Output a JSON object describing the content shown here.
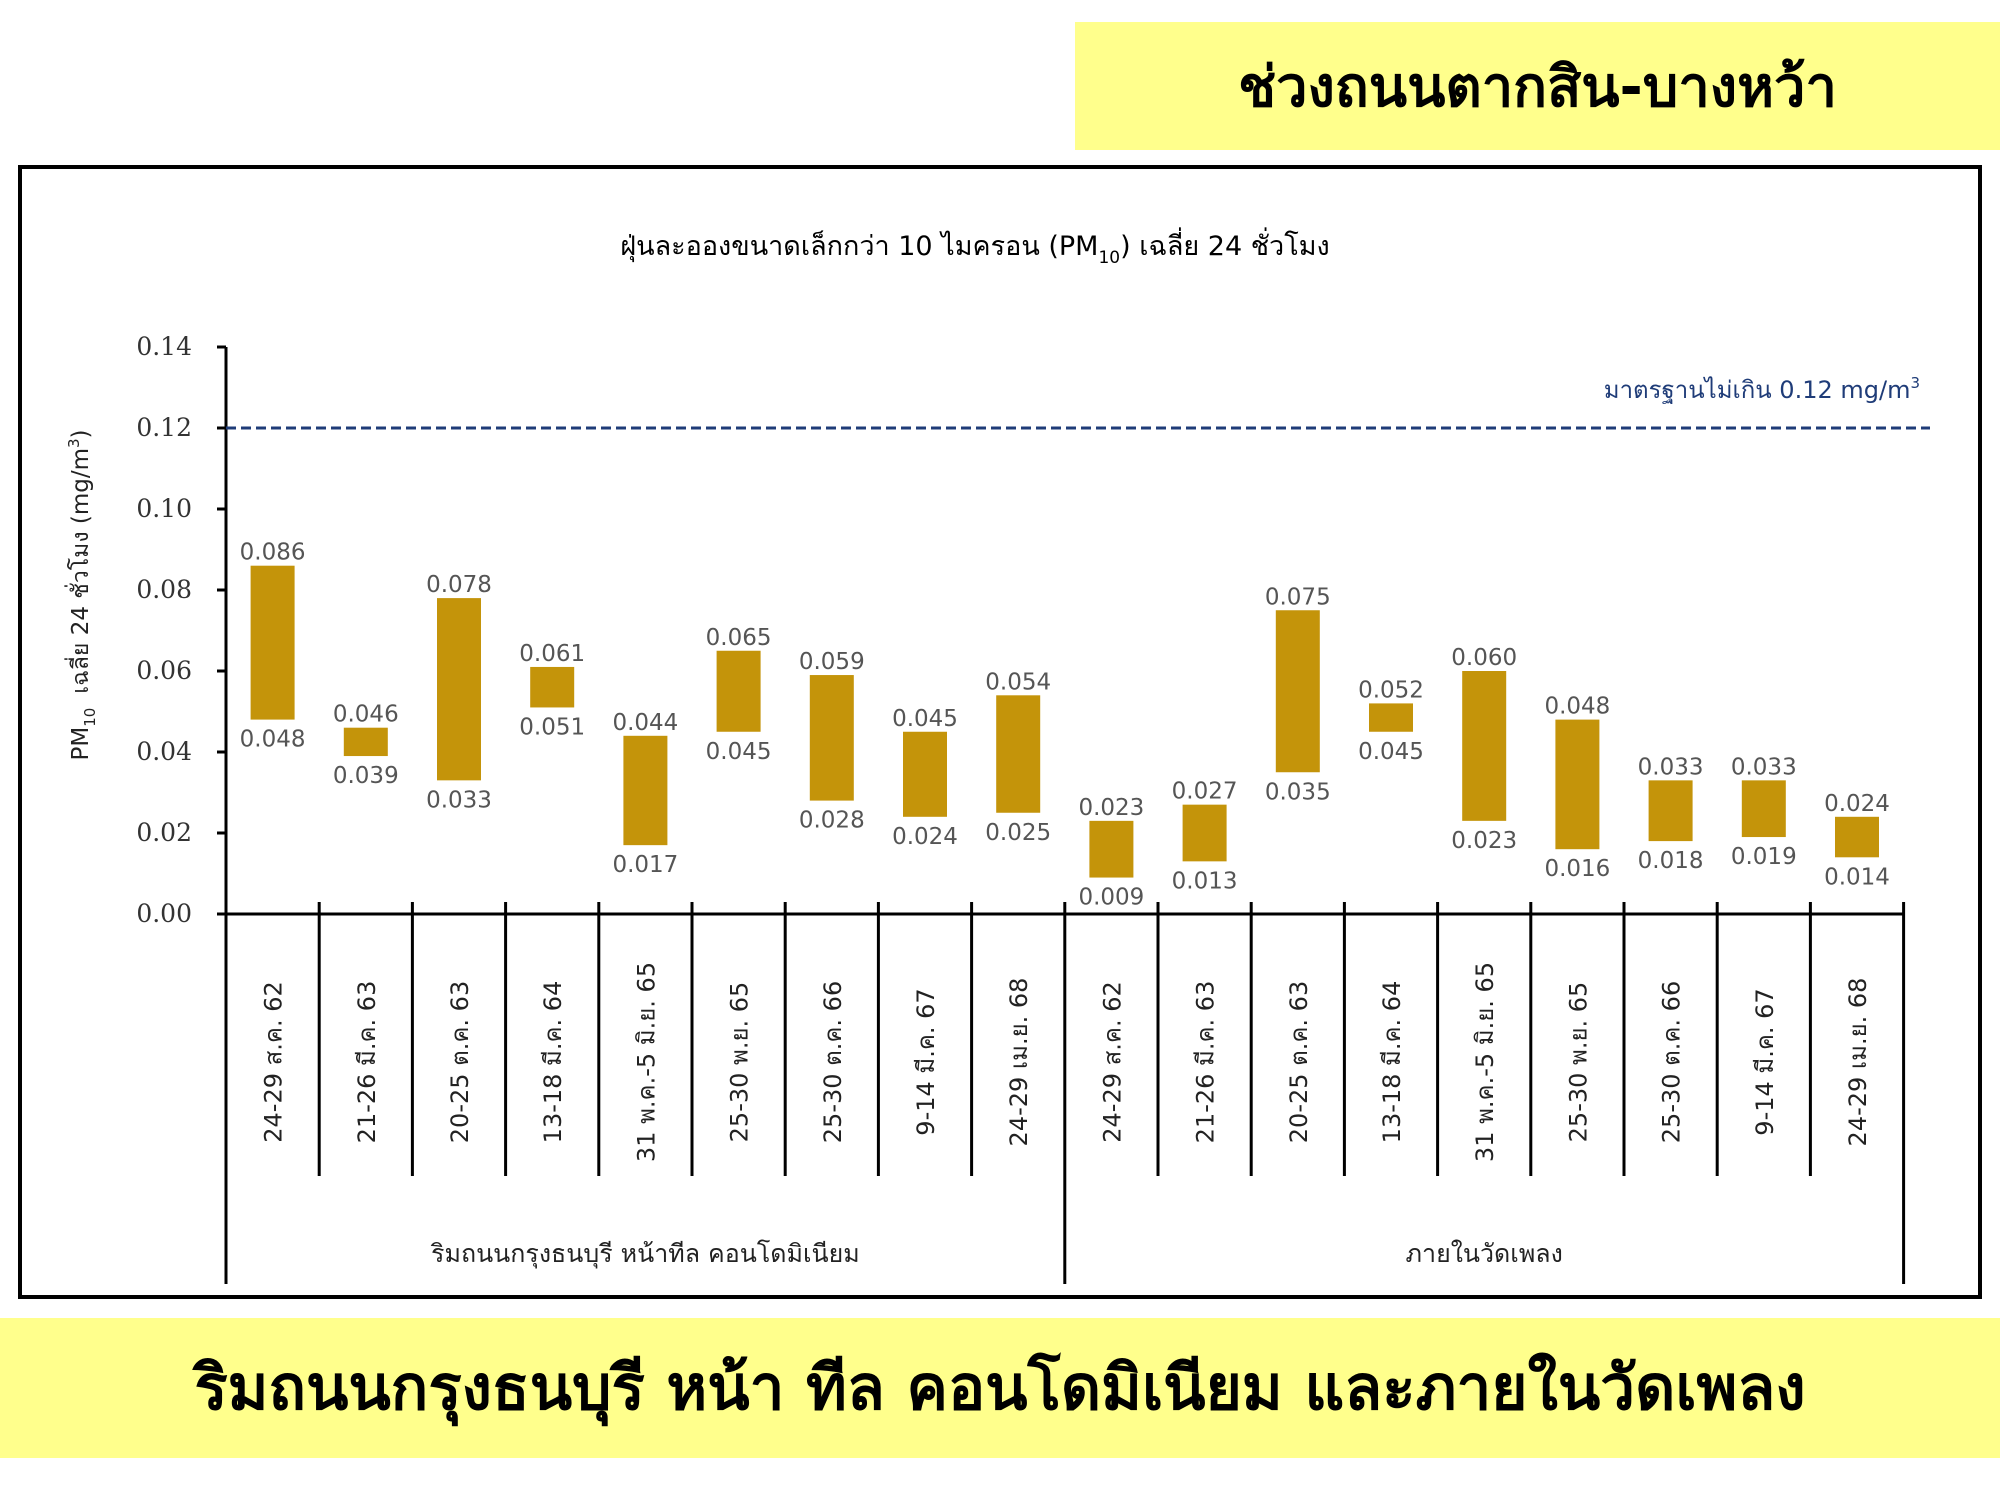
{
  "header": {
    "title": "ช่วงถนนตากสิน-บางหว้า"
  },
  "footer": {
    "caption": "ริมถนนกรุงธนบุรี หน้า ทีล คอนโดมิเนียม และภายในวัดเพลง"
  },
  "chart_data": {
    "type": "bar",
    "subtype": "floating-range",
    "title_main": "ฝุ่นละอองขนาดเล็กกว่า 10 ไมครอน (PM",
    "title_sub": "10",
    "title_end": ") เฉลี่ย 24 ชั่วโมง",
    "ylabel_pm": "PM",
    "ylabel_sub": "10",
    "ylabel_rest": "เฉลี่ย 24 ชั่วโมง (mg/m",
    "ylabel_sup": "3",
    "ylabel_close": ")",
    "ylim": [
      0,
      0.14
    ],
    "yticks": [
      "0.00",
      "0.02",
      "0.04",
      "0.06",
      "0.08",
      "0.10",
      "0.12",
      "0.14"
    ],
    "standard": {
      "value": 0.12,
      "label": "มาตรฐานไม่เกิน 0.12 mg/m",
      "label_sup": "3",
      "color": "#1f3c78"
    },
    "bar_color": "#c4940a",
    "groups": [
      {
        "name": "ริมถนนกรุงธนบุรี หน้าทีล คอนโดมิเนียม",
        "categories": [
          "24-29 ส.ค. 62",
          "21-26 มี.ค. 63",
          "20-25 ต.ค. 63",
          "13-18 มี.ค. 64",
          "31 พ.ค.-5 มิ.ย. 65",
          "25-30 พ.ย. 65",
          "25-30 ต.ค. 66",
          "9-14 มี.ค. 67",
          "24-29 เม.ย. 68"
        ],
        "max": [
          0.086,
          0.046,
          0.078,
          0.061,
          0.044,
          0.065,
          0.059,
          0.045,
          0.054
        ],
        "min": [
          0.048,
          0.039,
          0.033,
          0.051,
          0.017,
          0.045,
          0.028,
          0.024,
          0.025
        ],
        "max_labels": [
          "0.086",
          "0.046",
          "0.078",
          "0.061",
          "0.044",
          "0.065",
          "0.059",
          "0.045",
          "0.054"
        ],
        "min_labels": [
          "0.048",
          "0.039",
          "0.033",
          "0.051",
          "0.017",
          "0.045",
          "0.028",
          "0.024",
          "0.025"
        ]
      },
      {
        "name": "ภายในวัดเพลง",
        "categories": [
          "24-29 ส.ค. 62",
          "21-26 มี.ค. 63",
          "20-25 ต.ค. 63",
          "13-18 มี.ค. 64",
          "31 พ.ค.-5 มิ.ย. 65",
          "25-30 พ.ย. 65",
          "25-30 ต.ค. 66",
          "9-14 มี.ค. 67",
          "24-29 เม.ย. 68"
        ],
        "max": [
          0.023,
          0.027,
          0.075,
          0.052,
          0.06,
          0.048,
          0.033,
          0.033,
          0.024
        ],
        "min": [
          0.009,
          0.013,
          0.035,
          0.045,
          0.023,
          0.016,
          0.018,
          0.019,
          0.014
        ],
        "max_labels": [
          "0.023",
          "0.027",
          "0.075",
          "0.052",
          "0.060",
          "0.048",
          "0.033",
          "0.033",
          "0.024"
        ],
        "min_labels": [
          "0.009",
          "0.013",
          "0.035",
          "0.045",
          "0.023",
          "0.016",
          "0.018",
          "0.019",
          "0.014"
        ]
      }
    ]
  }
}
